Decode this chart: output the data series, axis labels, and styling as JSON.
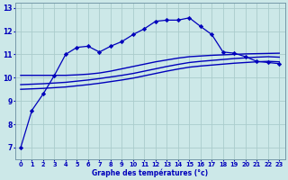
{
  "xlabel": "Graphe des températures (°c)",
  "background_color": "#cce8e8",
  "grid_color": "#aacccc",
  "line_color": "#0000bb",
  "xlim": [
    -0.5,
    23.5
  ],
  "ylim": [
    6.5,
    13.2
  ],
  "yticks": [
    7,
    8,
    9,
    10,
    11,
    12,
    13
  ],
  "xticks": [
    0,
    1,
    2,
    3,
    4,
    5,
    6,
    7,
    8,
    9,
    10,
    11,
    12,
    13,
    14,
    15,
    16,
    17,
    18,
    19,
    20,
    21,
    22,
    23
  ],
  "line1_x": [
    0,
    1,
    2,
    3,
    4,
    5,
    6,
    7,
    8,
    9,
    10,
    11,
    12,
    13,
    14,
    15,
    16,
    17,
    18,
    19,
    20,
    21,
    22,
    23
  ],
  "line1_y": [
    7.0,
    8.6,
    9.3,
    10.1,
    11.0,
    11.3,
    11.35,
    11.1,
    11.35,
    11.55,
    11.85,
    12.1,
    12.42,
    12.47,
    12.47,
    12.57,
    12.2,
    11.85,
    11.1,
    11.05,
    10.9,
    10.7,
    10.65,
    10.6
  ],
  "line2_x": [
    0,
    1,
    2,
    3,
    4,
    5,
    6,
    7,
    8,
    9,
    10,
    11,
    12,
    13,
    14,
    15,
    16,
    17,
    18,
    19,
    20,
    21,
    22,
    23
  ],
  "line2_y": [
    10.1,
    10.1,
    10.1,
    10.1,
    10.1,
    10.12,
    10.15,
    10.2,
    10.28,
    10.38,
    10.48,
    10.58,
    10.68,
    10.76,
    10.84,
    10.9,
    10.93,
    10.96,
    10.98,
    11.0,
    11.02,
    11.03,
    11.04,
    11.05
  ],
  "line3_x": [
    0,
    1,
    2,
    3,
    4,
    5,
    6,
    7,
    8,
    9,
    10,
    11,
    12,
    13,
    14,
    15,
    16,
    17,
    18,
    19,
    20,
    21,
    22,
    23
  ],
  "line3_y": [
    9.7,
    9.72,
    9.74,
    9.77,
    9.8,
    9.85,
    9.9,
    9.96,
    10.03,
    10.1,
    10.18,
    10.28,
    10.38,
    10.48,
    10.57,
    10.65,
    10.7,
    10.74,
    10.78,
    10.82,
    10.85,
    10.88,
    10.9,
    10.88
  ],
  "line4_x": [
    0,
    1,
    2,
    3,
    4,
    5,
    6,
    7,
    8,
    9,
    10,
    11,
    12,
    13,
    14,
    15,
    16,
    17,
    18,
    19,
    20,
    21,
    22,
    23
  ],
  "line4_y": [
    9.5,
    9.52,
    9.54,
    9.57,
    9.6,
    9.65,
    9.7,
    9.76,
    9.83,
    9.9,
    9.98,
    10.08,
    10.18,
    10.28,
    10.37,
    10.45,
    10.5,
    10.54,
    10.58,
    10.62,
    10.65,
    10.68,
    10.7,
    10.68
  ]
}
